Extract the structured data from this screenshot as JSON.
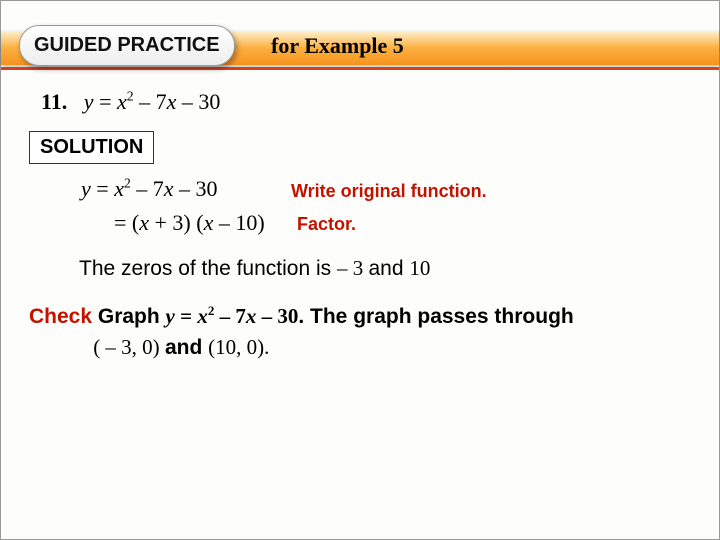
{
  "badge": "GUIDED PRACTICE",
  "title": "for Example 5",
  "question_number": "11.",
  "question_y": "y",
  "question_eq": " = ",
  "question_x": "x",
  "question_exp": "2",
  "question_rest": " – 7",
  "question_x2": "x",
  "question_end": " – 30",
  "solution_label": "SOLUTION",
  "eq1_y": "y",
  "eq1_eq": " = ",
  "eq1_x": "x",
  "eq1_exp": "2",
  "eq1_rest": " – 7",
  "eq1_x2": "x",
  "eq1_end": " – 30",
  "anno1": "Write original function.",
  "eq2_pre": "= (",
  "eq2_x1": "x",
  "eq2_mid": " + 3) (",
  "eq2_x2": "x",
  "eq2_post": " – 10)",
  "anno2": "Factor.",
  "result_a": "The zeros of the function is  ",
  "result_b": "– 3 ",
  "result_c": "and ",
  "result_d": "10",
  "check_label": "Check",
  "check_graph": " Graph ",
  "ch_y": "y",
  "ch_eq": " = ",
  "ch_x": "x",
  "ch_exp": "2",
  "ch_rest": " – 7",
  "ch_x2": "x",
  "ch_end": " – 30",
  "check_follow": ". The graph passes through",
  "check_line2_a": "( – 3, 0) ",
  "check_line2_b": "and ",
  "check_line2_c": "(10, 0).",
  "colors": {
    "red": "#c41200",
    "band_top": "#fff1d0",
    "band_mid": "#fbb040",
    "band_bot": "#f7941e",
    "divider": "#d64020"
  }
}
